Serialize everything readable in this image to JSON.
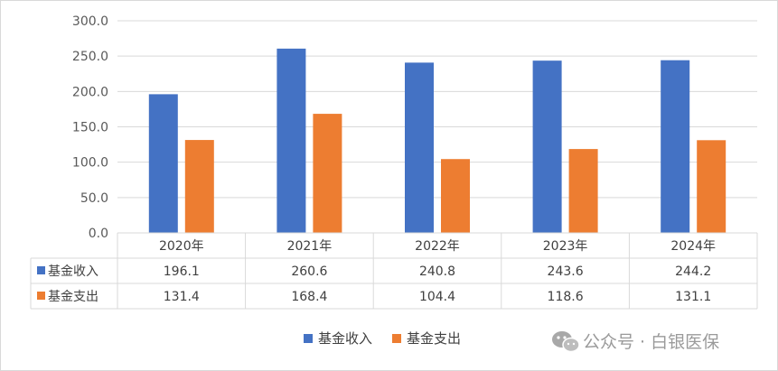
{
  "chart_data": {
    "type": "bar",
    "categories": [
      "2020年",
      "2021年",
      "2022年",
      "2023年",
      "2024年"
    ],
    "series": [
      {
        "name": "基金收入",
        "color": "#4472c4",
        "values": [
          196.1,
          260.6,
          240.8,
          243.6,
          244.2
        ]
      },
      {
        "name": "基金支出",
        "color": "#ed7d31",
        "values": [
          131.4,
          168.4,
          104.4,
          118.6,
          131.1
        ]
      }
    ],
    "yticks": [
      "0.0",
      "50.0",
      "100.0",
      "150.0",
      "200.0",
      "250.0",
      "300.0"
    ],
    "ylim": [
      0,
      300
    ],
    "grid": true,
    "legend": "bottom",
    "data_table": true
  },
  "watermark": {
    "text": "公众号 · 白银医保",
    "icon": "wechat-icon"
  }
}
